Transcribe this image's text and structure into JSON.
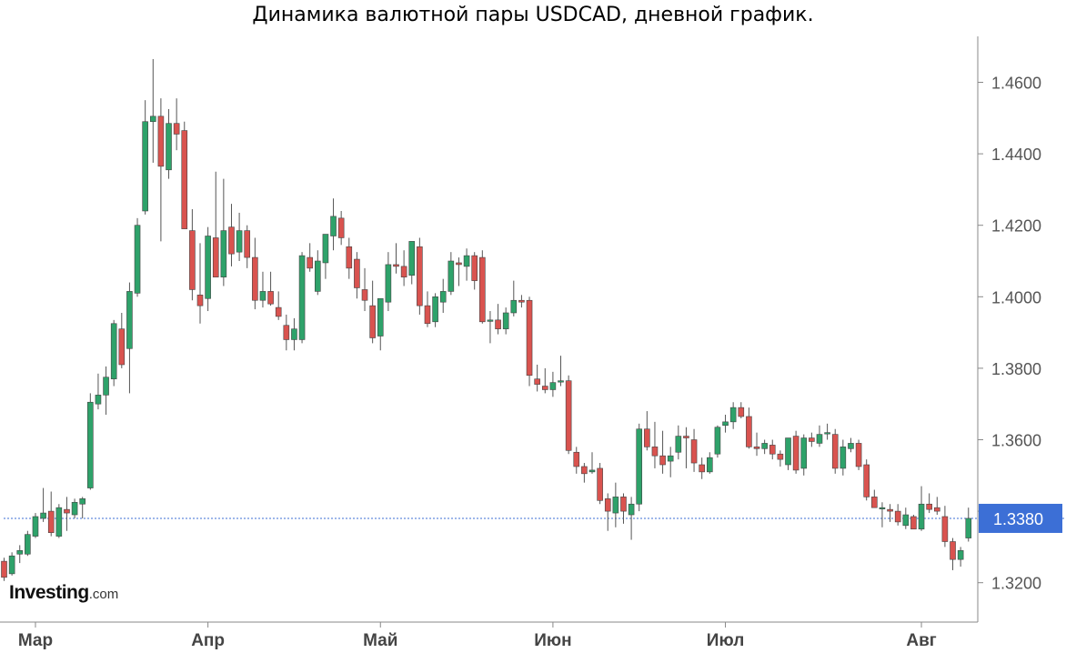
{
  "title": "Динамика валютной пары USDCAD, дневной график.",
  "brand": {
    "name": "Investing",
    "suffix": ".com"
  },
  "colors": {
    "up": "#2ea26a",
    "down": "#d9534f",
    "wick": "#555555",
    "current": "#3c6fd6",
    "axis": "#888888"
  },
  "chart_data": {
    "type": "candlestick",
    "title": "Динамика валютной пары USDCAD, дневной график.",
    "ylim": [
      1.312,
      1.474
    ],
    "yticks": [
      1.32,
      1.34,
      1.36,
      1.38,
      1.4,
      1.42,
      1.44,
      1.46
    ],
    "ytick_labels": [
      "1.3200",
      "1.3400",
      "1.3600",
      "1.3800",
      "1.4000",
      "1.4200",
      "1.4400",
      "1.4600"
    ],
    "x_months": [
      {
        "label": "Мар",
        "index": 4
      },
      {
        "label": "Апр",
        "index": 26
      },
      {
        "label": "Май",
        "index": 48
      },
      {
        "label": "Июн",
        "index": 70
      },
      {
        "label": "Июл",
        "index": 92
      },
      {
        "label": "Авг",
        "index": 117
      }
    ],
    "current_price": {
      "value": 1.338,
      "label": "1.3380"
    },
    "grid": false,
    "candles": [
      [
        1.326,
        1.327,
        1.3205,
        1.3215
      ],
      [
        1.3225,
        1.3285,
        1.322,
        1.3275
      ],
      [
        1.328,
        1.3305,
        1.3255,
        1.329
      ],
      [
        1.328,
        1.3345,
        1.3275,
        1.3335
      ],
      [
        1.333,
        1.3395,
        1.3325,
        1.3385
      ],
      [
        1.338,
        1.3465,
        1.337,
        1.3395
      ],
      [
        1.34,
        1.3455,
        1.333,
        1.334
      ],
      [
        1.333,
        1.342,
        1.3325,
        1.341
      ],
      [
        1.3405,
        1.344,
        1.3345,
        1.3395
      ],
      [
        1.339,
        1.3435,
        1.338,
        1.3425
      ],
      [
        1.342,
        1.344,
        1.338,
        1.3435
      ],
      [
        1.3465,
        1.373,
        1.346,
        1.3705
      ],
      [
        1.37,
        1.3785,
        1.3685,
        1.3725
      ],
      [
        1.3725,
        1.3805,
        1.367,
        1.3775
      ],
      [
        1.377,
        1.3935,
        1.375,
        1.3925
      ],
      [
        1.391,
        1.3955,
        1.38,
        1.381
      ],
      [
        1.3855,
        1.404,
        1.373,
        1.4015
      ],
      [
        1.401,
        1.422,
        1.4,
        1.42
      ],
      [
        1.424,
        1.455,
        1.423,
        1.449
      ],
      [
        1.449,
        1.4665,
        1.4375,
        1.4505
      ],
      [
        1.4505,
        1.4555,
        1.4155,
        1.4365
      ],
      [
        1.4355,
        1.4525,
        1.433,
        1.4485
      ],
      [
        1.4485,
        1.4555,
        1.441,
        1.4455
      ],
      [
        1.4465,
        1.449,
        1.419,
        1.419
      ],
      [
        1.4185,
        1.4245,
        1.399,
        1.402
      ],
      [
        1.4005,
        1.415,
        1.3925,
        1.3975
      ],
      [
        1.3995,
        1.4195,
        1.396,
        1.417
      ],
      [
        1.4165,
        1.435,
        1.4055,
        1.4055
      ],
      [
        1.4055,
        1.433,
        1.403,
        1.4185
      ],
      [
        1.4195,
        1.426,
        1.4085,
        1.412
      ],
      [
        1.4125,
        1.4235,
        1.41,
        1.4185
      ],
      [
        1.4185,
        1.42,
        1.408,
        1.411
      ],
      [
        1.411,
        1.4165,
        1.3965,
        1.399
      ],
      [
        1.399,
        1.407,
        1.397,
        1.4015
      ],
      [
        1.4015,
        1.407,
        1.3975,
        1.398
      ],
      [
        1.397,
        1.4015,
        1.3935,
        1.3945
      ],
      [
        1.392,
        1.395,
        1.385,
        1.388
      ],
      [
        1.388,
        1.394,
        1.385,
        1.391
      ],
      [
        1.388,
        1.4125,
        1.387,
        1.4115
      ],
      [
        1.411,
        1.415,
        1.407,
        1.408
      ],
      [
        1.4015,
        1.413,
        1.4005,
        1.41
      ],
      [
        1.4095,
        1.417,
        1.405,
        1.4175
      ],
      [
        1.417,
        1.4275,
        1.413,
        1.4225
      ],
      [
        1.422,
        1.424,
        1.4145,
        1.4165
      ],
      [
        1.414,
        1.4165,
        1.405,
        1.408
      ],
      [
        1.4105,
        1.4125,
        1.3995,
        1.4025
      ],
      [
        1.402,
        1.408,
        1.396,
        1.399
      ],
      [
        1.3975,
        1.4045,
        1.387,
        1.3885
      ],
      [
        1.389,
        1.3985,
        1.385,
        1.3995
      ],
      [
        1.3985,
        1.4125,
        1.396,
        1.409
      ],
      [
        1.409,
        1.415,
        1.4065,
        1.4085
      ],
      [
        1.4085,
        1.413,
        1.403,
        1.4055
      ],
      [
        1.406,
        1.4155,
        1.4035,
        1.4155
      ],
      [
        1.414,
        1.4165,
        1.395,
        1.3975
      ],
      [
        1.3975,
        1.4015,
        1.3915,
        1.3925
      ],
      [
        1.393,
        1.401,
        1.3915,
        1.4
      ],
      [
        1.3985,
        1.405,
        1.3955,
        1.4015
      ],
      [
        1.4015,
        1.4125,
        1.4005,
        1.41
      ],
      [
        1.4095,
        1.411,
        1.403,
        1.409
      ],
      [
        1.4085,
        1.4135,
        1.4045,
        1.4115
      ],
      [
        1.4115,
        1.4125,
        1.402,
        1.4045
      ],
      [
        1.411,
        1.413,
        1.3925,
        1.393
      ],
      [
        1.3935,
        1.396,
        1.387,
        1.3935
      ],
      [
        1.3935,
        1.398,
        1.3895,
        1.391
      ],
      [
        1.391,
        1.397,
        1.3895,
        1.3955
      ],
      [
        1.3955,
        1.4045,
        1.3945,
        1.399
      ],
      [
        1.399,
        1.4005,
        1.397,
        1.3985
      ],
      [
        1.399,
        1.4,
        1.375,
        1.378
      ],
      [
        1.377,
        1.381,
        1.3735,
        1.3755
      ],
      [
        1.375,
        1.38,
        1.373,
        1.374
      ],
      [
        1.374,
        1.379,
        1.372,
        1.376
      ],
      [
        1.3765,
        1.3835,
        1.375,
        1.3765
      ],
      [
        1.3765,
        1.378,
        1.356,
        1.357
      ],
      [
        1.3565,
        1.358,
        1.3505,
        1.3525
      ],
      [
        1.3525,
        1.3535,
        1.348,
        1.3505
      ],
      [
        1.351,
        1.3565,
        1.3505,
        1.3515
      ],
      [
        1.352,
        1.3535,
        1.342,
        1.343
      ],
      [
        1.3435,
        1.345,
        1.3345,
        1.34
      ],
      [
        1.3395,
        1.348,
        1.3355,
        1.344
      ],
      [
        1.344,
        1.345,
        1.3365,
        1.34
      ],
      [
        1.339,
        1.344,
        1.332,
        1.342
      ],
      [
        1.342,
        1.3645,
        1.34,
        1.363
      ],
      [
        1.363,
        1.368,
        1.357,
        1.358
      ],
      [
        1.358,
        1.365,
        1.352,
        1.3555
      ],
      [
        1.3555,
        1.3625,
        1.3505,
        1.353
      ],
      [
        1.354,
        1.358,
        1.3495,
        1.3555
      ],
      [
        1.3565,
        1.364,
        1.3545,
        1.361
      ],
      [
        1.361,
        1.3635,
        1.352,
        1.3605
      ],
      [
        1.36,
        1.363,
        1.351,
        1.3535
      ],
      [
        1.353,
        1.355,
        1.349,
        1.351
      ],
      [
        1.351,
        1.3565,
        1.3505,
        1.355
      ],
      [
        1.356,
        1.364,
        1.355,
        1.3635
      ],
      [
        1.364,
        1.367,
        1.362,
        1.365
      ],
      [
        1.365,
        1.3705,
        1.363,
        1.369
      ],
      [
        1.369,
        1.3705,
        1.366,
        1.3665
      ],
      [
        1.3665,
        1.369,
        1.3575,
        1.358
      ],
      [
        1.358,
        1.362,
        1.3555,
        1.3575
      ],
      [
        1.3575,
        1.36,
        1.356,
        1.359
      ],
      [
        1.3585,
        1.36,
        1.3545,
        1.356
      ],
      [
        1.356,
        1.357,
        1.3525,
        1.3545
      ],
      [
        1.353,
        1.36,
        1.3515,
        1.3605
      ],
      [
        1.361,
        1.3625,
        1.3505,
        1.3515
      ],
      [
        1.352,
        1.3615,
        1.35,
        1.3605
      ],
      [
        1.3605,
        1.362,
        1.358,
        1.3595
      ],
      [
        1.359,
        1.364,
        1.358,
        1.3615
      ],
      [
        1.362,
        1.3645,
        1.36,
        1.362
      ],
      [
        1.3615,
        1.363,
        1.3505,
        1.352
      ],
      [
        1.352,
        1.36,
        1.35,
        1.358
      ],
      [
        1.3575,
        1.3605,
        1.3565,
        1.359
      ],
      [
        1.359,
        1.36,
        1.3515,
        1.3525
      ],
      [
        1.353,
        1.3545,
        1.343,
        1.344
      ],
      [
        1.344,
        1.346,
        1.341,
        1.341
      ],
      [
        1.341,
        1.3425,
        1.3355,
        1.341
      ],
      [
        1.3405,
        1.342,
        1.337,
        1.34
      ],
      [
        1.34,
        1.342,
        1.336,
        1.337
      ],
      [
        1.336,
        1.341,
        1.335,
        1.339
      ],
      [
        1.3385,
        1.339,
        1.335,
        1.335
      ],
      [
        1.335,
        1.347,
        1.3345,
        1.342
      ],
      [
        1.342,
        1.345,
        1.3395,
        1.3405
      ],
      [
        1.341,
        1.344,
        1.339,
        1.34
      ],
      [
        1.3385,
        1.3415,
        1.33,
        1.3315
      ],
      [
        1.3315,
        1.3325,
        1.3235,
        1.3265
      ],
      [
        1.3265,
        1.33,
        1.3245,
        1.329
      ],
      [
        1.3325,
        1.341,
        1.3315,
        1.338
      ]
    ]
  }
}
